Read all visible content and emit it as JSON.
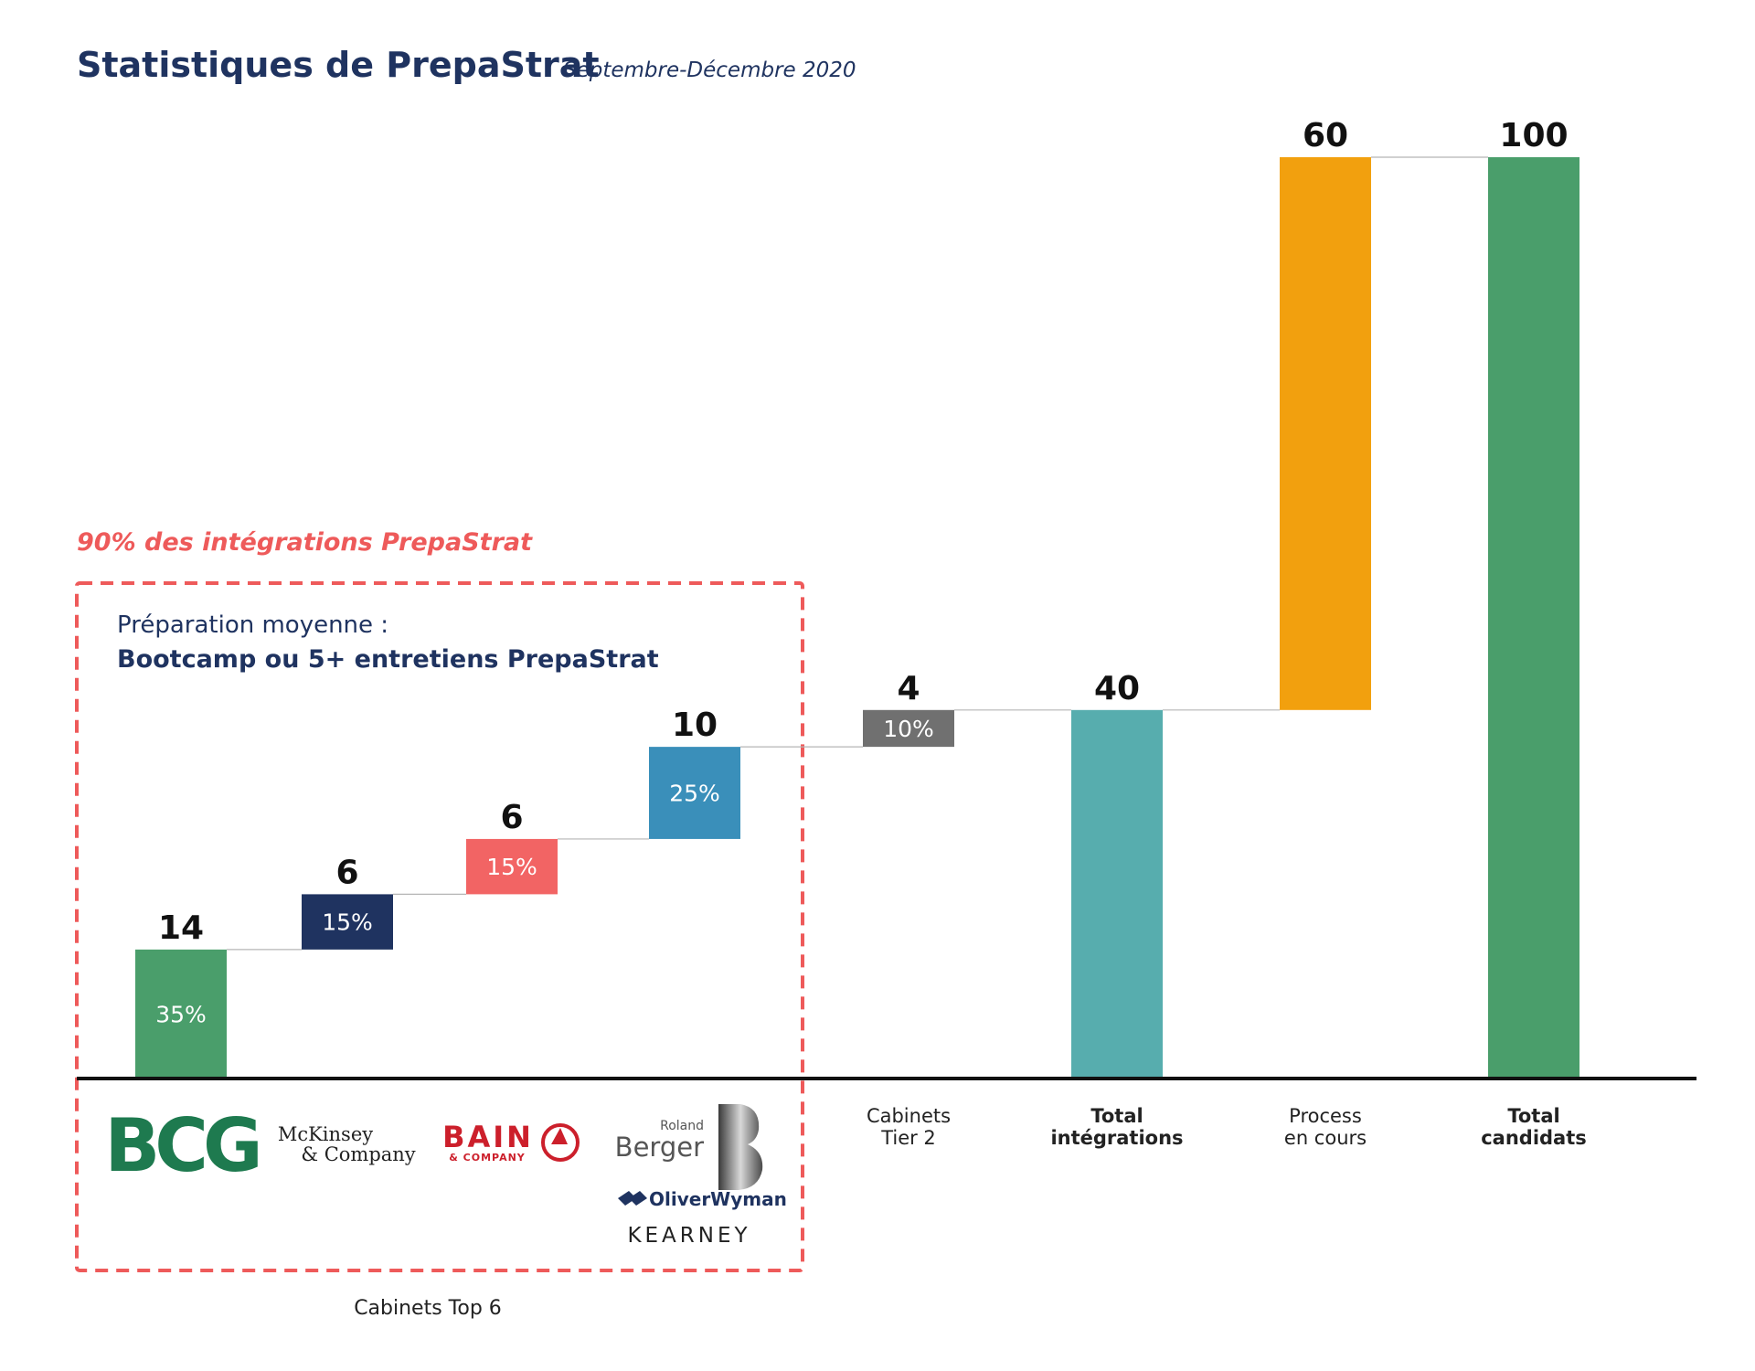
{
  "header": {
    "title": "Statistiques de PrepaStrat",
    "subtitle": "Septembre-Décembre 2020"
  },
  "annotation": {
    "text": "90% des intégrations PrepaStrat",
    "color": "#ee5a5a"
  },
  "box": {
    "line1": "Préparation moyenne :",
    "line2": "Bootcamp ou 5+ entretiens PrepaStrat",
    "group_label": "Cabinets Top 6"
  },
  "logos": {
    "bcg": "BCG",
    "mckinsey_1": "McKinsey",
    "mckinsey_2": "& Company",
    "bain_1": "BAIN",
    "bain_2": "& COMPANY",
    "roland": "Roland",
    "berger": "Berger",
    "oliverwyman": "OliverWyman",
    "kearney": "KEARNEY"
  },
  "chart_data": {
    "type": "bar",
    "subtype": "waterfall",
    "title": "Statistiques de PrepaStrat",
    "ylim": [
      0,
      100
    ],
    "bars": [
      {
        "category": "BCG",
        "value": 14,
        "start": 0,
        "label": "14",
        "pct": "35%",
        "color": "#4a9e6b"
      },
      {
        "category": "McKinsey & Company",
        "value": 6,
        "start": 14,
        "label": "6",
        "pct": "15%",
        "color": "#1f3360"
      },
      {
        "category": "Bain & Company",
        "value": 6,
        "start": 20,
        "label": "6",
        "pct": "15%",
        "color": "#f26464"
      },
      {
        "category": "Roland Berger / Oliver Wyman / Kearney",
        "value": 10,
        "start": 26,
        "label": "10",
        "pct": "25%",
        "color": "#3a8fba"
      },
      {
        "category": "Cabinets Tier 2",
        "value": 4,
        "start": 36,
        "label": "4",
        "pct": "10%",
        "color": "#707070"
      },
      {
        "category": "Total intégrations",
        "value": 40,
        "start": 0,
        "label": "40",
        "pct": "",
        "color": "#57adae"
      },
      {
        "category": "Process en cours",
        "value": 60,
        "start": 40,
        "label": "60",
        "pct": "",
        "color": "#f2a00e"
      },
      {
        "category": "Total candidats",
        "value": 100,
        "start": 0,
        "label": "100",
        "pct": "",
        "color": "#4a9e6b"
      }
    ],
    "category_labels": [
      {
        "lines": [
          "Cabinets",
          "Tier 2"
        ],
        "bold": false
      },
      {
        "lines": [
          "Total",
          "intégrations"
        ],
        "bold": true
      },
      {
        "lines": [
          "Process",
          "en cours"
        ],
        "bold": false
      },
      {
        "lines": [
          "Total",
          "candidats"
        ],
        "bold": true
      }
    ]
  }
}
